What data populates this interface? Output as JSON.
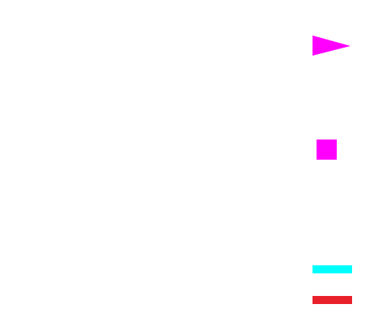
{
  "shapes": [
    {
      "name": "triangle-pointing-right",
      "color": "#ff00ff"
    },
    {
      "name": "square",
      "color": "#ff00ff"
    },
    {
      "name": "horizontal-bar",
      "color": "#00ffff"
    },
    {
      "name": "horizontal-bar",
      "color": "#e8202a"
    }
  ]
}
